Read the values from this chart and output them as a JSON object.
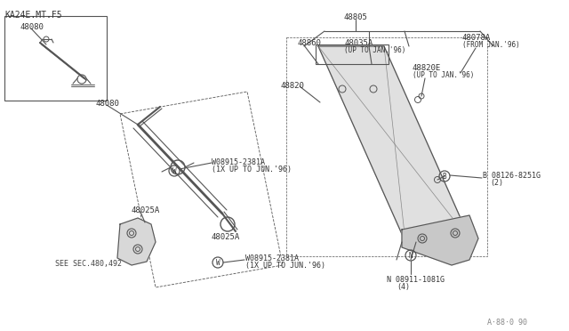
{
  "bg_color": "#ffffff",
  "line_color": "#555555",
  "text_color": "#333333",
  "title_text": "KA24E.MT.F5",
  "footer_text": "A·88·0 90",
  "labels": {
    "48080_top": "48080",
    "48080_main": "48080",
    "48805": "48805",
    "48860": "48860",
    "48035A": "48035A",
    "48035A_sub": "(UP TO JAN.'96)",
    "48078A": "48078A",
    "48078A_sub": "(FROM JAN.'96)",
    "48820": "48820",
    "48820E": "48820E",
    "48820E_sub": "(UP TO JAN.'96)",
    "48025A_1": "48025A",
    "48025A_2": "48025A",
    "w1_label": "W08915-2381A",
    "w1_sub": "(1X UP TO JUN.'96)",
    "w2_label": "W08915-2381A",
    "w2_sub": "(1X UP TO JUN.'96)",
    "B_label": "B 08126-8251G",
    "B_sub": "(2)",
    "N_label": "N 08911-1081G",
    "N_sub": "(4)",
    "see_sec": "SEE SEC.480,492"
  },
  "figsize": [
    6.4,
    3.72
  ],
  "dpi": 100
}
